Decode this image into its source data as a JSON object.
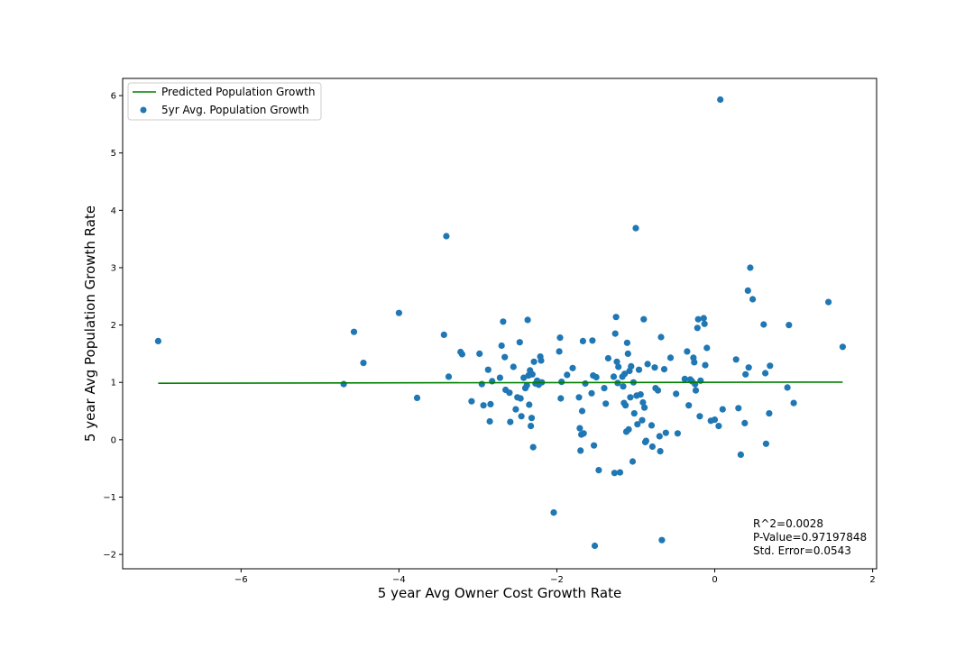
{
  "chart_data": {
    "type": "scatter",
    "title": "",
    "xlabel": "5 year Avg Owner Cost Growth Rate",
    "ylabel": "5 year Avg Population Growth Rate",
    "xlim": [
      -7.5,
      2.05
    ],
    "ylim": [
      -2.25,
      6.3
    ],
    "x_ticks": [
      -6,
      -4,
      -2,
      0,
      2
    ],
    "y_ticks": [
      -2,
      -1,
      0,
      1,
      2,
      3,
      4,
      5,
      6
    ],
    "grid": false,
    "legend_position": "top-left",
    "colors": {
      "points": "#1f77b4",
      "line": "#008000"
    },
    "series": [
      {
        "name": "Predicted Population Growth",
        "kind": "line",
        "x": [
          -7.05,
          1.62
        ],
        "y": [
          0.985,
          1.005
        ]
      },
      {
        "name": "5yr Avg. Population Growth",
        "kind": "scatter",
        "points": [
          [
            -7.05,
            1.72
          ],
          [
            -4.7,
            0.97
          ],
          [
            -4.57,
            1.88
          ],
          [
            -4.45,
            1.34
          ],
          [
            -4.0,
            2.21
          ],
          [
            -3.77,
            0.73
          ],
          [
            -3.43,
            1.83
          ],
          [
            -3.4,
            3.55
          ],
          [
            -3.37,
            1.1
          ],
          [
            -3.22,
            1.53
          ],
          [
            -3.2,
            1.49
          ],
          [
            -3.08,
            0.67
          ],
          [
            -2.98,
            1.5
          ],
          [
            -2.95,
            0.97
          ],
          [
            -2.93,
            0.6
          ],
          [
            -2.87,
            1.22
          ],
          [
            -2.85,
            0.32
          ],
          [
            -2.84,
            0.62
          ],
          [
            -2.82,
            1.02
          ],
          [
            -2.72,
            1.08
          ],
          [
            -2.7,
            1.64
          ],
          [
            -2.68,
            2.06
          ],
          [
            -2.66,
            1.44
          ],
          [
            -2.65,
            0.87
          ],
          [
            -2.6,
            0.82
          ],
          [
            -2.59,
            0.31
          ],
          [
            -2.55,
            1.27
          ],
          [
            -2.52,
            0.53
          ],
          [
            -2.5,
            0.74
          ],
          [
            -2.47,
            1.7
          ],
          [
            -2.46,
            0.72
          ],
          [
            -2.45,
            0.41
          ],
          [
            -2.42,
            1.08
          ],
          [
            -2.4,
            0.9
          ],
          [
            -2.38,
            0.95
          ],
          [
            -2.37,
            2.09
          ],
          [
            -2.36,
            1.12
          ],
          [
            -2.35,
            0.61
          ],
          [
            -2.34,
            1.21
          ],
          [
            -2.33,
            0.24
          ],
          [
            -2.32,
            0.38
          ],
          [
            -2.31,
            1.14
          ],
          [
            -2.3,
            -0.13
          ],
          [
            -2.29,
            1.36
          ],
          [
            -2.27,
            0.98
          ],
          [
            -2.25,
            1.03
          ],
          [
            -2.23,
            0.96
          ],
          [
            -2.21,
            1.45
          ],
          [
            -2.2,
            1.38
          ],
          [
            -2.19,
            1.0
          ],
          [
            -2.04,
            -1.27
          ],
          [
            -1.97,
            1.54
          ],
          [
            -1.96,
            1.78
          ],
          [
            -1.95,
            0.72
          ],
          [
            -1.94,
            1.01
          ],
          [
            -1.87,
            1.13
          ],
          [
            -1.8,
            1.25
          ],
          [
            -1.72,
            0.74
          ],
          [
            -1.71,
            0.2
          ],
          [
            -1.7,
            -0.19
          ],
          [
            -1.69,
            0.09
          ],
          [
            -1.68,
            0.5
          ],
          [
            -1.67,
            1.72
          ],
          [
            -1.66,
            0.11
          ],
          [
            -1.64,
            0.98
          ],
          [
            -1.56,
            0.81
          ],
          [
            -1.55,
            1.73
          ],
          [
            -1.54,
            1.12
          ],
          [
            -1.53,
            -0.1
          ],
          [
            -1.52,
            -1.85
          ],
          [
            -1.5,
            1.09
          ],
          [
            -1.47,
            -0.53
          ],
          [
            -1.4,
            0.9
          ],
          [
            -1.38,
            0.63
          ],
          [
            -1.35,
            1.42
          ],
          [
            -1.28,
            1.1
          ],
          [
            -1.27,
            -0.58
          ],
          [
            -1.26,
            1.85
          ],
          [
            -1.25,
            2.14
          ],
          [
            -1.24,
            1.36
          ],
          [
            -1.23,
            0.99
          ],
          [
            -1.22,
            1.27
          ],
          [
            -1.2,
            -0.57
          ],
          [
            -1.17,
            1.1
          ],
          [
            -1.16,
            0.93
          ],
          [
            -1.15,
            0.64
          ],
          [
            -1.14,
            1.15
          ],
          [
            -1.13,
            0.6
          ],
          [
            -1.12,
            0.14
          ],
          [
            -1.11,
            1.69
          ],
          [
            -1.1,
            1.5
          ],
          [
            -1.09,
            0.18
          ],
          [
            -1.08,
            1.2
          ],
          [
            -1.07,
            0.74
          ],
          [
            -1.06,
            1.28
          ],
          [
            -1.04,
            -0.38
          ],
          [
            -1.03,
            1.0
          ],
          [
            -1.02,
            0.46
          ],
          [
            -1.0,
            3.69
          ],
          [
            -0.99,
            0.77
          ],
          [
            -0.98,
            0.27
          ],
          [
            -0.96,
            1.22
          ],
          [
            -0.94,
            0.79
          ],
          [
            -0.92,
            0.34
          ],
          [
            -0.91,
            0.65
          ],
          [
            -0.9,
            2.1
          ],
          [
            -0.89,
            0.56
          ],
          [
            -0.88,
            -0.04
          ],
          [
            -0.87,
            -0.02
          ],
          [
            -0.85,
            1.32
          ],
          [
            -0.8,
            0.25
          ],
          [
            -0.79,
            -0.12
          ],
          [
            -0.76,
            1.26
          ],
          [
            -0.75,
            0.9
          ],
          [
            -0.72,
            0.86
          ],
          [
            -0.7,
            0.06
          ],
          [
            -0.69,
            -0.2
          ],
          [
            -0.68,
            1.79
          ],
          [
            -0.67,
            -1.75
          ],
          [
            -0.64,
            1.23
          ],
          [
            -0.62,
            0.12
          ],
          [
            -0.56,
            1.43
          ],
          [
            -0.49,
            0.8
          ],
          [
            -0.47,
            0.11
          ],
          [
            -0.38,
            1.06
          ],
          [
            -0.35,
            1.54
          ],
          [
            -0.33,
            0.6
          ],
          [
            -0.31,
            1.05
          ],
          [
            -0.29,
            1.02
          ],
          [
            -0.27,
            1.43
          ],
          [
            -0.26,
            1.35
          ],
          [
            -0.25,
            0.97
          ],
          [
            -0.24,
            0.86
          ],
          [
            -0.22,
            1.95
          ],
          [
            -0.21,
            2.1
          ],
          [
            -0.19,
            0.41
          ],
          [
            -0.18,
            1.03
          ],
          [
            -0.14,
            2.12
          ],
          [
            -0.13,
            2.02
          ],
          [
            -0.12,
            1.3
          ],
          [
            -0.1,
            1.6
          ],
          [
            -0.05,
            0.33
          ],
          [
            0.0,
            0.35
          ],
          [
            0.05,
            0.24
          ],
          [
            0.07,
            5.93
          ],
          [
            0.1,
            0.53
          ],
          [
            0.27,
            1.4
          ],
          [
            0.3,
            0.55
          ],
          [
            0.33,
            -0.26
          ],
          [
            0.38,
            0.29
          ],
          [
            0.39,
            1.14
          ],
          [
            0.42,
            2.6
          ],
          [
            0.43,
            1.26
          ],
          [
            0.45,
            3.0
          ],
          [
            0.48,
            2.45
          ],
          [
            0.62,
            2.01
          ],
          [
            0.64,
            1.16
          ],
          [
            0.65,
            -0.07
          ],
          [
            0.69,
            0.46
          ],
          [
            0.7,
            1.29
          ],
          [
            0.92,
            0.91
          ],
          [
            0.94,
            2.0
          ],
          [
            1.0,
            0.64
          ],
          [
            1.44,
            2.4
          ],
          [
            1.62,
            1.62
          ]
        ]
      }
    ],
    "annotations": [
      "R^2=0.0028",
      "P-Value=0.97197848",
      "Std. Error=0.0543"
    ]
  }
}
